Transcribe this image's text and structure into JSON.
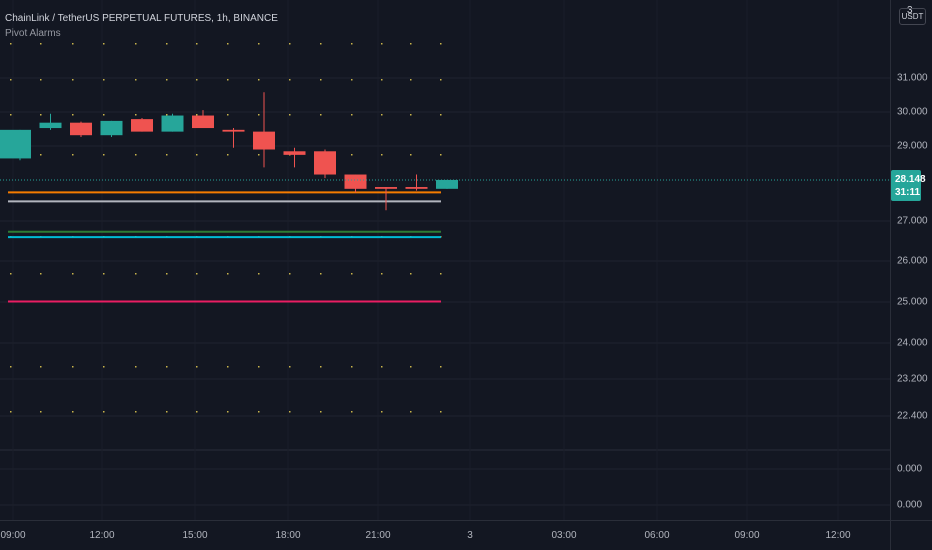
{
  "legend": {
    "symbol_line": "ChainLink / TetherUS PERPETUAL FUTURES, 1h, BINANCE",
    "indicator_name": "Pivot Alarms"
  },
  "price_axis": {
    "top_count": "3",
    "currency": "USDT",
    "labels": [
      "31.000",
      "30.000",
      "29.000",
      "27.000",
      "26.000",
      "25.000",
      "24.000",
      "23.200",
      "22.400",
      "0.000",
      "0.000"
    ],
    "last_price": "28.148",
    "countdown": "31:11"
  },
  "time_axis": {
    "labels": [
      "09:00",
      "12:00",
      "15:00",
      "18:00",
      "21:00",
      "3",
      "03:00",
      "06:00",
      "09:00",
      "12:00"
    ]
  },
  "colors": {
    "background": "#131722",
    "up": "#26a69a",
    "down": "#ef5350",
    "pivot_orange": "#f57c00",
    "pivot_gray": "#b2b5be",
    "pivot_green": "#2e7d32",
    "pivot_cyan": "#00bcd4",
    "pivot_magenta": "#e91e63",
    "dots": "#c9b44b"
  },
  "chart_data": {
    "type": "candlestick",
    "symbol": "ChainLink / TetherUS PERPETUAL FUTURES",
    "interval": "1h",
    "exchange": "BINANCE",
    "candles": [
      {
        "o": 28.75,
        "h": 29.55,
        "l": 28.7,
        "c": 29.55
      },
      {
        "o": 29.6,
        "h": 30.0,
        "l": 29.55,
        "c": 29.75
      },
      {
        "o": 29.75,
        "h": 29.78,
        "l": 29.35,
        "c": 29.4
      },
      {
        "o": 29.4,
        "h": 29.8,
        "l": 29.35,
        "c": 29.8
      },
      {
        "o": 29.85,
        "h": 29.88,
        "l": 29.5,
        "c": 29.5
      },
      {
        "o": 29.5,
        "h": 30.0,
        "l": 29.5,
        "c": 29.95
      },
      {
        "o": 29.95,
        "h": 30.1,
        "l": 29.6,
        "c": 29.6
      },
      {
        "o": 29.55,
        "h": 29.6,
        "l": 29.05,
        "c": 29.5
      },
      {
        "o": 29.5,
        "h": 30.6,
        "l": 28.5,
        "c": 29.0
      },
      {
        "o": 28.95,
        "h": 29.05,
        "l": 28.5,
        "c": 28.85
      },
      {
        "o": 28.95,
        "h": 29.0,
        "l": 28.2,
        "c": 28.3
      },
      {
        "o": 28.3,
        "h": 28.3,
        "l": 27.8,
        "c": 27.9
      },
      {
        "o": 27.95,
        "h": 27.95,
        "l": 27.3,
        "c": 27.9
      },
      {
        "o": 27.95,
        "h": 28.3,
        "l": 27.85,
        "c": 27.9
      },
      {
        "o": 27.9,
        "h": 28.15,
        "l": 27.9,
        "c": 28.148
      }
    ],
    "pivot_levels": [
      {
        "color": "orange",
        "value": 27.8
      },
      {
        "color": "gray",
        "value": 27.55
      },
      {
        "color": "green",
        "value": 26.7
      },
      {
        "color": "cyan",
        "value": 26.55
      },
      {
        "color": "magenta",
        "value": 24.75
      }
    ],
    "last_price": 28.148
  }
}
